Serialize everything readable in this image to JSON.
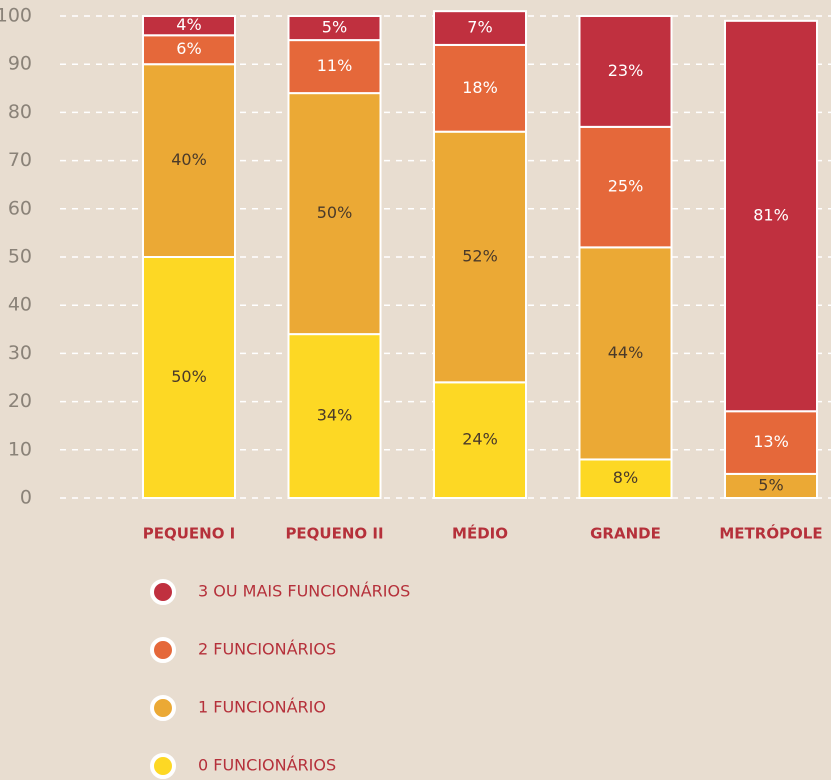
{
  "chart_data": {
    "type": "stacked_bar",
    "categories": [
      "PEQUENO I",
      "PEQUENO II",
      "MÉDIO",
      "GRANDE",
      "METRÓPOLE"
    ],
    "series": [
      {
        "name": "0 FUNCIONÁRIOS",
        "color": "#fdd824",
        "values": [
          50,
          34,
          24,
          8,
          null
        ],
        "value_labels": [
          "50%",
          "34%",
          "24%",
          "8%",
          null
        ]
      },
      {
        "name": "1 FUNCIONÁRIO",
        "color": "#eba935",
        "values": [
          40,
          50,
          52,
          44,
          5
        ],
        "value_labels": [
          "40%",
          "50%",
          "52%",
          "44%",
          "5%"
        ]
      },
      {
        "name": "2 FUNCIONÁRIOS",
        "color": "#e5683a",
        "values": [
          6,
          11,
          18,
          25,
          13
        ],
        "value_labels": [
          "6%",
          "11%",
          "18%",
          "25%",
          "13%"
        ]
      },
      {
        "name": "3 OU MAIS FUNCIONÁRIOS",
        "color": "#c0303f",
        "values": [
          4,
          5,
          7,
          23,
          81
        ],
        "value_labels": [
          "4%",
          "5%",
          "7%",
          "23%",
          "81%"
        ]
      }
    ],
    "ylim": [
      0,
      100
    ],
    "yticks": [
      0,
      10,
      20,
      30,
      40,
      50,
      60,
      70,
      80,
      90,
      100
    ],
    "grid": true
  }
}
